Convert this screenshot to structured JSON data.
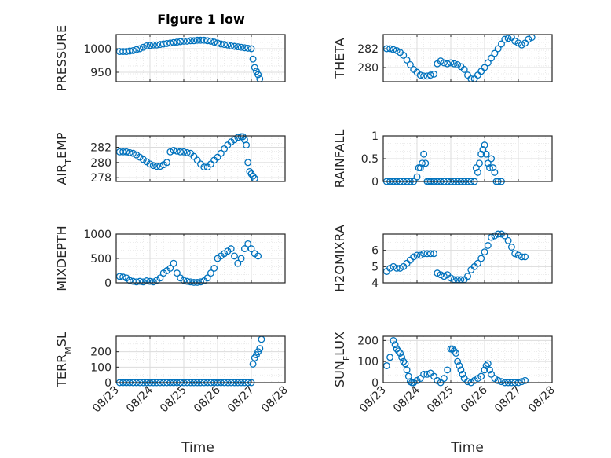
{
  "figure": {
    "title": "Figure 1 low",
    "marker_color": "#0072BD",
    "axis_color": "#262626",
    "grid_color": "#dcdcdc",
    "xlabel": "Time"
  },
  "chart_data": [
    {
      "type": "scatter",
      "panel": "top-left",
      "ylabel": "PRESSURE",
      "yticks": [
        "950",
        "1000"
      ],
      "ylim": [
        930,
        1030
      ],
      "xlim": [
        "08/23",
        "08/28"
      ],
      "grid": true,
      "series": [
        {
          "x": [
            0.1,
            0.2,
            0.3,
            0.4,
            0.5,
            0.6,
            0.7,
            0.8,
            0.9,
            1.0,
            1.1,
            1.2,
            1.3,
            1.4,
            1.5,
            1.6,
            1.7,
            1.8,
            1.9,
            2.0,
            2.1,
            2.2,
            2.3,
            2.4,
            2.5,
            2.6,
            2.7,
            2.8,
            2.9,
            3.0,
            3.1,
            3.2,
            3.3,
            3.4,
            3.5,
            3.6,
            3.7,
            3.8,
            3.9,
            4.0,
            4.05,
            4.1,
            4.15,
            4.2,
            4.25
          ],
          "y": [
            994,
            994,
            994,
            995,
            996,
            998,
            1000,
            1003,
            1006,
            1007,
            1008,
            1008,
            1009,
            1010,
            1011,
            1012,
            1013,
            1014,
            1015,
            1016,
            1016,
            1017,
            1017,
            1018,
            1018,
            1018,
            1017,
            1016,
            1014,
            1012,
            1010,
            1009,
            1008,
            1006,
            1005,
            1004,
            1003,
            1002,
            1001,
            1000,
            978,
            960,
            952,
            945,
            936
          ]
        }
      ]
    },
    {
      "type": "scatter",
      "panel": "top-right",
      "ylabel": "THETA",
      "yticks": [
        "280",
        "282"
      ],
      "ylim": [
        278.5,
        283.5
      ],
      "xlim": [
        "08/23",
        "08/28"
      ],
      "grid": true,
      "series": [
        {
          "x": [
            0.1,
            0.2,
            0.3,
            0.4,
            0.5,
            0.6,
            0.7,
            0.8,
            0.9,
            1.0,
            1.1,
            1.2,
            1.3,
            1.4,
            1.5,
            1.6,
            1.7,
            1.8,
            1.9,
            2.0,
            2.1,
            2.2,
            2.3,
            2.4,
            2.5,
            2.6,
            2.7,
            2.8,
            2.9,
            3.0,
            3.1,
            3.2,
            3.3,
            3.4,
            3.5,
            3.6,
            3.7,
            3.8,
            3.9,
            4.0,
            4.1,
            4.2,
            4.3,
            4.4
          ],
          "y": [
            282.0,
            282.0,
            281.9,
            281.8,
            281.6,
            281.3,
            280.8,
            280.3,
            279.8,
            279.5,
            279.2,
            279.1,
            279.1,
            279.2,
            279.3,
            280.4,
            280.7,
            280.5,
            280.4,
            280.5,
            280.4,
            280.3,
            280.1,
            279.8,
            279.2,
            278.8,
            278.8,
            279.2,
            279.6,
            280.0,
            280.5,
            281.0,
            281.5,
            282.0,
            282.5,
            283.0,
            283.1,
            283.2,
            282.8,
            282.6,
            282.4,
            282.6,
            283.0,
            283.2
          ]
        }
      ]
    },
    {
      "type": "scatter",
      "panel": "second-left",
      "ylabel": "AIR_TEMP",
      "yticks": [
        "278",
        "280",
        "282"
      ],
      "ylim": [
        277.5,
        283.5
      ],
      "xlim": [
        "08/23",
        "08/28"
      ],
      "grid": true,
      "series": [
        {
          "x": [
            0.1,
            0.2,
            0.3,
            0.4,
            0.5,
            0.6,
            0.7,
            0.8,
            0.9,
            1.0,
            1.1,
            1.2,
            1.3,
            1.4,
            1.5,
            1.6,
            1.7,
            1.8,
            1.9,
            2.0,
            2.1,
            2.2,
            2.3,
            2.4,
            2.5,
            2.6,
            2.7,
            2.8,
            2.9,
            3.0,
            3.1,
            3.2,
            3.3,
            3.4,
            3.5,
            3.6,
            3.7,
            3.75,
            3.8,
            3.85,
            3.9,
            3.95,
            4.0,
            4.05,
            4.1
          ],
          "y": [
            281.4,
            281.4,
            281.4,
            281.3,
            281.2,
            281.0,
            280.7,
            280.4,
            280.1,
            279.8,
            279.6,
            279.5,
            279.5,
            279.7,
            280.0,
            281.4,
            281.6,
            281.5,
            281.4,
            281.4,
            281.3,
            281.2,
            280.8,
            280.3,
            279.8,
            279.4,
            279.4,
            279.8,
            280.3,
            280.7,
            281.2,
            281.8,
            282.3,
            282.7,
            283.0,
            283.3,
            283.4,
            283.4,
            283.0,
            282.3,
            280.0,
            278.8,
            278.5,
            278.2,
            277.9
          ]
        }
      ]
    },
    {
      "type": "scatter",
      "panel": "second-right",
      "ylabel": "RAINFALL",
      "yticks": [
        "0",
        "0.5",
        "1"
      ],
      "ylim": [
        0,
        1
      ],
      "xlim": [
        "08/23",
        "08/28"
      ],
      "grid": true,
      "series": [
        {
          "x": [
            0.1,
            0.2,
            0.3,
            0.4,
            0.5,
            0.6,
            0.7,
            0.8,
            0.9,
            1.0,
            1.05,
            1.1,
            1.15,
            1.2,
            1.25,
            1.3,
            1.35,
            1.4,
            1.5,
            1.6,
            1.7,
            1.8,
            1.9,
            2.0,
            2.1,
            2.2,
            2.3,
            2.4,
            2.5,
            2.6,
            2.7,
            2.75,
            2.8,
            2.85,
            2.9,
            2.95,
            3.0,
            3.05,
            3.1,
            3.15,
            3.2,
            3.25,
            3.3,
            3.35,
            3.4,
            3.5
          ],
          "y": [
            0,
            0,
            0,
            0,
            0,
            0,
            0,
            0,
            0,
            0.1,
            0.3,
            0.3,
            0.4,
            0.6,
            0.4,
            0,
            0,
            0,
            0,
            0,
            0,
            0,
            0,
            0,
            0,
            0,
            0,
            0,
            0,
            0,
            0,
            0.3,
            0.2,
            0.4,
            0.6,
            0.7,
            0.8,
            0.6,
            0.4,
            0.3,
            0.5,
            0.3,
            0.2,
            0,
            0,
            0
          ]
        }
      ]
    },
    {
      "type": "scatter",
      "panel": "third-left",
      "ylabel": "MIXDEPTH",
      "yticks": [
        "0",
        "500",
        "1000"
      ],
      "ylim": [
        0,
        1000
      ],
      "xlim": [
        "08/23",
        "08/28"
      ],
      "grid": true,
      "series": [
        {
          "x": [
            0.1,
            0.2,
            0.3,
            0.4,
            0.5,
            0.6,
            0.7,
            0.8,
            0.9,
            1.0,
            1.1,
            1.2,
            1.3,
            1.4,
            1.5,
            1.6,
            1.7,
            1.8,
            1.9,
            2.0,
            2.1,
            2.2,
            2.3,
            2.4,
            2.5,
            2.6,
            2.7,
            2.8,
            2.9,
            3.0,
            3.1,
            3.2,
            3.3,
            3.4,
            3.5,
            3.6,
            3.7,
            3.8,
            3.9,
            4.0,
            4.1,
            4.2
          ],
          "y": [
            130,
            120,
            100,
            50,
            30,
            20,
            30,
            20,
            40,
            30,
            20,
            50,
            100,
            200,
            250,
            300,
            400,
            200,
            100,
            50,
            30,
            20,
            10,
            10,
            20,
            40,
            100,
            200,
            300,
            500,
            550,
            600,
            650,
            700,
            550,
            400,
            500,
            700,
            800,
            700,
            600,
            550
          ]
        }
      ]
    },
    {
      "type": "scatter",
      "panel": "third-right",
      "ylabel": "H2OMIXRA",
      "yticks": [
        "4",
        "5",
        "6"
      ],
      "ylim": [
        4,
        7
      ],
      "xlim": [
        "08/23",
        "08/28"
      ],
      "grid": true,
      "series": [
        {
          "x": [
            0.1,
            0.2,
            0.3,
            0.4,
            0.5,
            0.6,
            0.7,
            0.8,
            0.9,
            1.0,
            1.1,
            1.2,
            1.3,
            1.4,
            1.5,
            1.6,
            1.7,
            1.8,
            1.9,
            2.0,
            2.1,
            2.2,
            2.3,
            2.4,
            2.5,
            2.6,
            2.7,
            2.8,
            2.9,
            3.0,
            3.1,
            3.2,
            3.3,
            3.4,
            3.5,
            3.6,
            3.7,
            3.8,
            3.9,
            4.0,
            4.1,
            4.2
          ],
          "y": [
            4.7,
            4.9,
            5.0,
            4.9,
            4.9,
            5.0,
            5.2,
            5.4,
            5.6,
            5.7,
            5.7,
            5.8,
            5.8,
            5.8,
            5.8,
            4.6,
            4.5,
            4.4,
            4.5,
            4.3,
            4.2,
            4.2,
            4.2,
            4.2,
            4.4,
            4.8,
            5.0,
            5.2,
            5.5,
            5.9,
            6.3,
            6.8,
            6.9,
            7.0,
            7.0,
            6.9,
            6.6,
            6.2,
            5.8,
            5.7,
            5.6,
            5.6
          ]
        }
      ]
    },
    {
      "type": "scatter",
      "panel": "bottom-left",
      "ylabel": "TERR_MSL",
      "yticks": [
        "0",
        "100",
        "200"
      ],
      "ylim": [
        0,
        300
      ],
      "xlim": [
        "08/23",
        "08/28"
      ],
      "xticks": [
        "08/23",
        "08/24",
        "08/25",
        "08/26",
        "08/27",
        "08/28"
      ],
      "grid": true,
      "series": [
        {
          "x": [
            0.1,
            0.2,
            0.3,
            0.4,
            0.5,
            0.6,
            0.7,
            0.8,
            0.9,
            1.0,
            1.1,
            1.2,
            1.3,
            1.4,
            1.5,
            1.6,
            1.7,
            1.8,
            1.9,
            2.0,
            2.1,
            2.2,
            2.3,
            2.4,
            2.5,
            2.6,
            2.7,
            2.8,
            2.9,
            3.0,
            3.1,
            3.2,
            3.3,
            3.4,
            3.5,
            3.6,
            3.7,
            3.8,
            3.9,
            4.0,
            4.05,
            4.1,
            4.15,
            4.2,
            4.25,
            4.3
          ],
          "y": [
            0,
            0,
            0,
            0,
            0,
            0,
            0,
            0,
            0,
            0,
            0,
            0,
            0,
            0,
            0,
            0,
            0,
            0,
            0,
            0,
            0,
            0,
            0,
            0,
            0,
            0,
            0,
            0,
            0,
            0,
            0,
            0,
            0,
            0,
            0,
            0,
            0,
            0,
            0,
            0,
            120,
            160,
            180,
            200,
            220,
            280
          ]
        }
      ]
    },
    {
      "type": "scatter",
      "panel": "bottom-right",
      "ylabel": "SUN_FLUX",
      "yticks": [
        "0",
        "100",
        "200"
      ],
      "ylim": [
        0,
        220
      ],
      "xlim": [
        "08/23",
        "08/28"
      ],
      "xticks": [
        "08/23",
        "08/24",
        "08/25",
        "08/26",
        "08/27",
        "08/28"
      ],
      "grid": true,
      "series": [
        {
          "x": [
            0.1,
            0.2,
            0.3,
            0.35,
            0.4,
            0.45,
            0.5,
            0.55,
            0.6,
            0.65,
            0.7,
            0.75,
            0.8,
            0.85,
            0.9,
            1.0,
            1.1,
            1.2,
            1.3,
            1.4,
            1.5,
            1.6,
            1.7,
            1.8,
            1.9,
            2.0,
            2.05,
            2.1,
            2.15,
            2.2,
            2.25,
            2.3,
            2.35,
            2.4,
            2.5,
            2.6,
            2.7,
            2.8,
            2.9,
            3.0,
            3.05,
            3.1,
            3.15,
            3.2,
            3.3,
            3.4,
            3.5,
            3.6,
            3.7,
            3.8,
            3.9,
            4.0,
            4.1,
            4.2
          ],
          "y": [
            80,
            120,
            200,
            180,
            160,
            150,
            140,
            120,
            100,
            90,
            60,
            30,
            5,
            0,
            0,
            10,
            20,
            40,
            40,
            45,
            30,
            10,
            0,
            20,
            60,
            160,
            160,
            150,
            140,
            100,
            80,
            60,
            40,
            20,
            5,
            0,
            10,
            20,
            30,
            60,
            80,
            90,
            60,
            40,
            20,
            10,
            5,
            0,
            0,
            0,
            0,
            0,
            5,
            10
          ]
        }
      ]
    }
  ]
}
